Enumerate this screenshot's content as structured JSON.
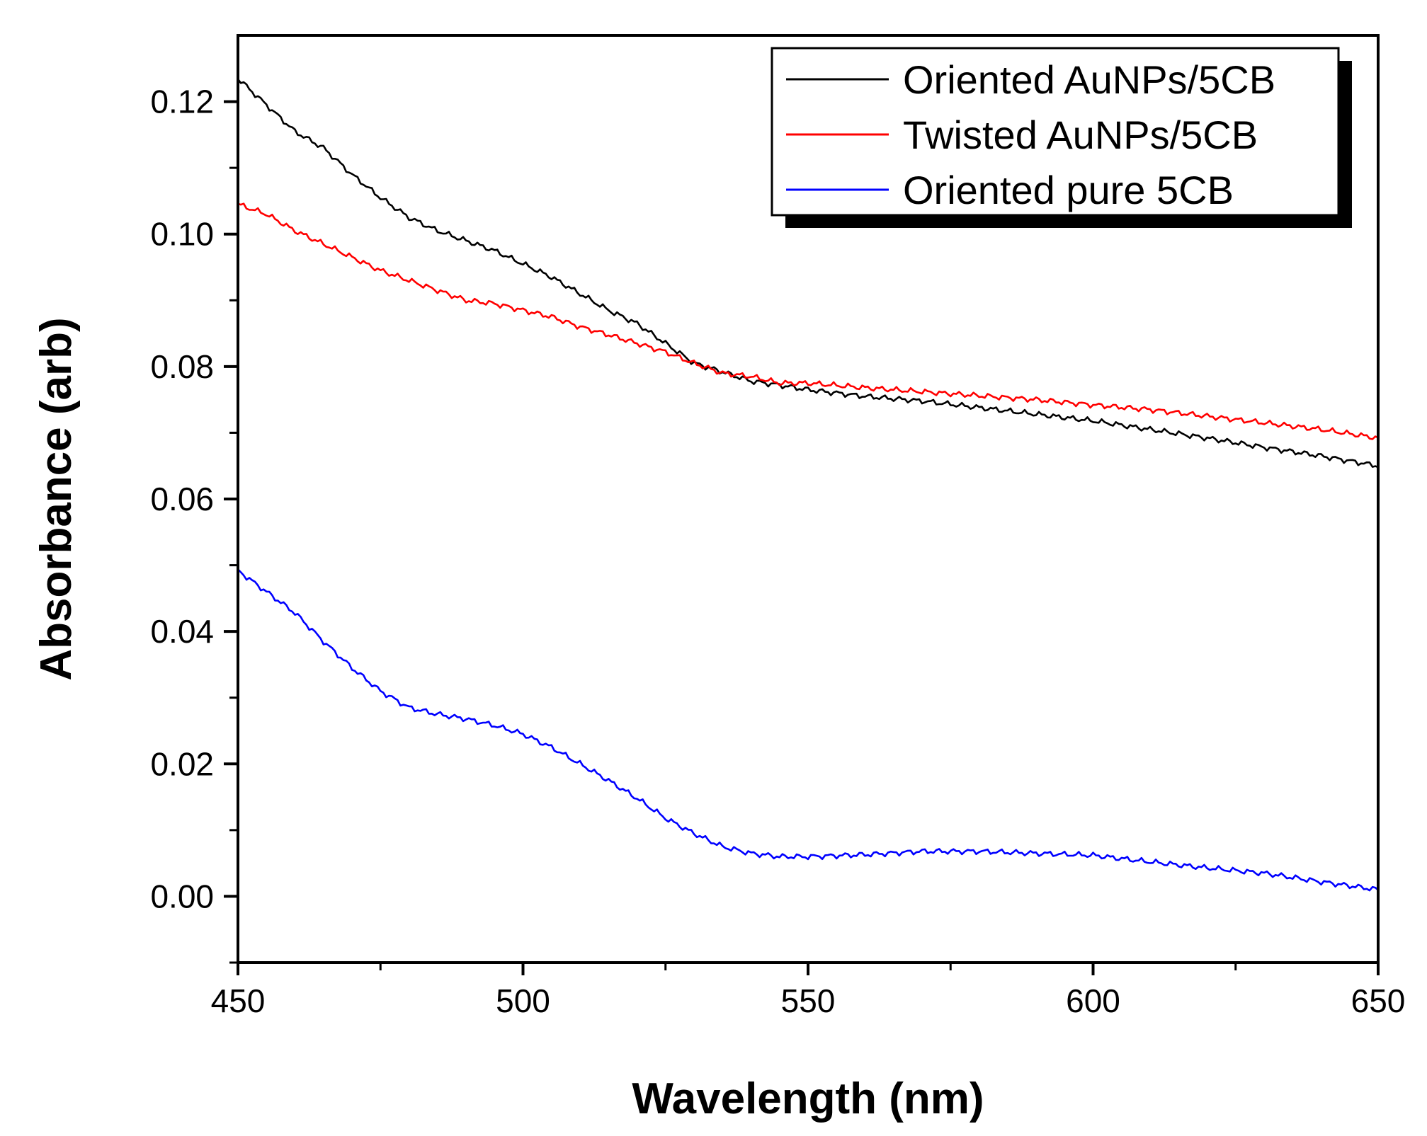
{
  "chart_data": {
    "type": "line",
    "title": "",
    "xlabel": "Wavelength (nm)",
    "ylabel": "Absorbance (arb)",
    "xlim": [
      450,
      650
    ],
    "ylim": [
      -0.01,
      0.13
    ],
    "xticks": [
      450,
      500,
      550,
      600,
      650
    ],
    "xtick_labels": [
      "450",
      "500",
      "550",
      "600",
      "650"
    ],
    "xminor": [
      475,
      525,
      575,
      625
    ],
    "yticks": [
      0.0,
      0.02,
      0.04,
      0.06,
      0.08,
      0.1,
      0.12
    ],
    "ytick_labels": [
      "0.00",
      "0.02",
      "0.04",
      "0.06",
      "0.08",
      "0.10",
      "0.12"
    ],
    "yminor": [
      -0.01,
      0.01,
      0.03,
      0.05,
      0.07,
      0.09,
      0.11
    ],
    "grid": false,
    "legend_position": "top-right",
    "series": [
      {
        "name": "Oriented AuNPs/5CB",
        "color": "#000000",
        "x": [
          450,
          455,
          460,
          465,
          470,
          475,
          480,
          485,
          490,
          495,
          500,
          505,
          510,
          515,
          520,
          525,
          530,
          535,
          540,
          545,
          550,
          560,
          570,
          580,
          590,
          600,
          610,
          620,
          630,
          640,
          650
        ],
        "y": [
          0.1235,
          0.1195,
          0.1155,
          0.113,
          0.109,
          0.1055,
          0.1025,
          0.1005,
          0.099,
          0.0975,
          0.0955,
          0.0935,
          0.091,
          0.0885,
          0.0865,
          0.0835,
          0.0805,
          0.0792,
          0.0778,
          0.0772,
          0.0765,
          0.0755,
          0.0748,
          0.0738,
          0.0728,
          0.0718,
          0.0705,
          0.0692,
          0.0678,
          0.0665,
          0.065
        ]
      },
      {
        "name": "Twisted AuNPs/5CB",
        "color": "#ff0000",
        "x": [
          450,
          455,
          460,
          465,
          470,
          475,
          480,
          485,
          490,
          495,
          500,
          505,
          510,
          515,
          520,
          525,
          530,
          535,
          540,
          545,
          550,
          560,
          570,
          580,
          590,
          600,
          610,
          620,
          630,
          640,
          650
        ],
        "y": [
          0.1045,
          0.103,
          0.1005,
          0.0985,
          0.0965,
          0.0945,
          0.093,
          0.0915,
          0.09,
          0.0895,
          0.0885,
          0.0875,
          0.086,
          0.0848,
          0.0835,
          0.0822,
          0.0805,
          0.079,
          0.0785,
          0.0775,
          0.0775,
          0.0768,
          0.0762,
          0.0756,
          0.075,
          0.0742,
          0.0735,
          0.0725,
          0.0715,
          0.0705,
          0.0692
        ]
      },
      {
        "name": "Oriented pure 5CB",
        "color": "#0000ff",
        "x": [
          450,
          455,
          460,
          465,
          470,
          475,
          480,
          485,
          490,
          495,
          500,
          505,
          510,
          515,
          520,
          525,
          530,
          535,
          540,
          545,
          550,
          560,
          570,
          580,
          590,
          600,
          610,
          620,
          630,
          640,
          650
        ],
        "y": [
          0.0492,
          0.046,
          0.0428,
          0.0385,
          0.0345,
          0.031,
          0.0285,
          0.0275,
          0.0268,
          0.0258,
          0.0245,
          0.0225,
          0.02,
          0.0175,
          0.0148,
          0.0118,
          0.0095,
          0.0075,
          0.0065,
          0.006,
          0.006,
          0.0063,
          0.0068,
          0.0068,
          0.0065,
          0.0062,
          0.0052,
          0.0043,
          0.0035,
          0.0022,
          0.001
        ]
      }
    ]
  }
}
